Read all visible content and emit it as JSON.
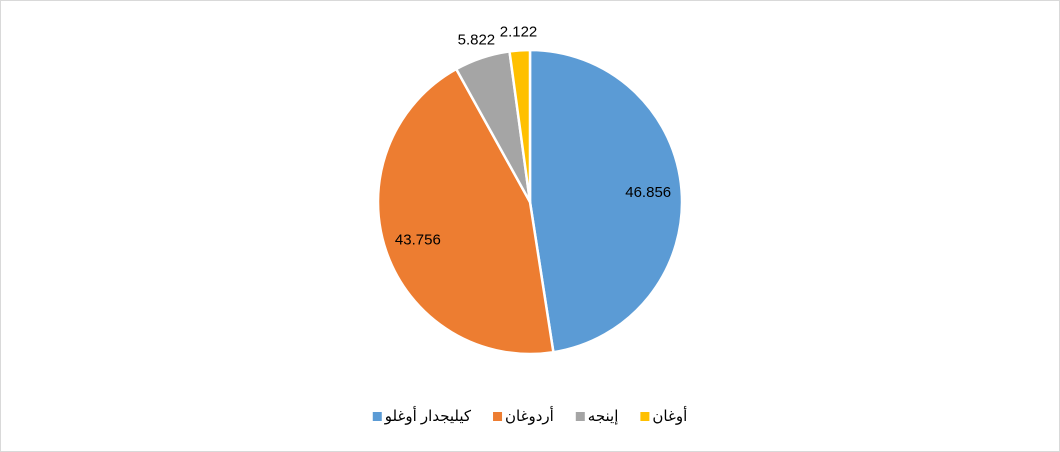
{
  "chart_data": {
    "type": "pie",
    "categories": [
      "كيليجدار أوغلو",
      "أردوغان",
      "إينجه",
      "أوغان"
    ],
    "values": [
      46.856,
      43.756,
      5.822,
      2.122
    ],
    "colors": [
      "#5b9bd5",
      "#ed7d31",
      "#a5a5a5",
      "#ffc000"
    ],
    "legend": "bottom"
  }
}
